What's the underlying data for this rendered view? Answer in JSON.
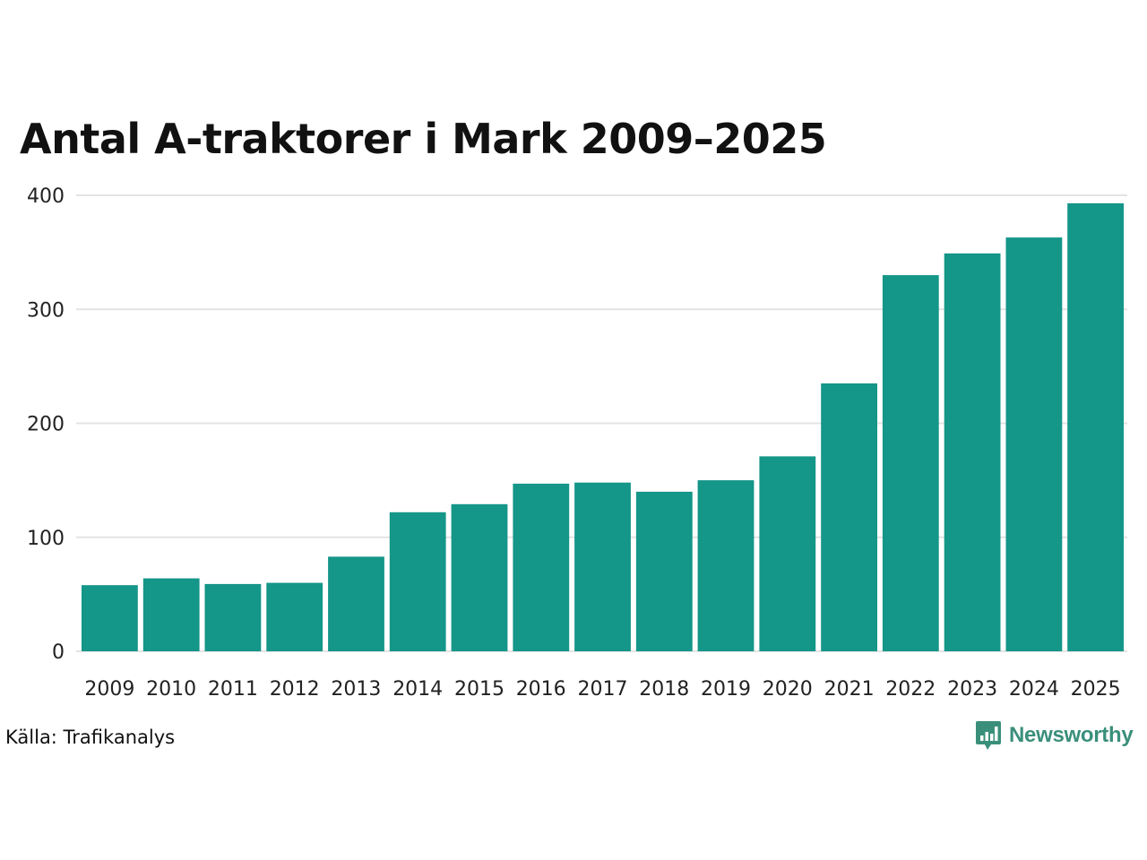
{
  "chart_data": {
    "type": "bar",
    "title": "Antal A-traktorer i Mark 2009–2025",
    "xlabel": "",
    "ylabel": "",
    "categories": [
      "2009",
      "2010",
      "2011",
      "2012",
      "2013",
      "2014",
      "2015",
      "2016",
      "2017",
      "2018",
      "2019",
      "2020",
      "2021",
      "2022",
      "2023",
      "2024",
      "2025"
    ],
    "values": [
      58,
      64,
      59,
      60,
      83,
      122,
      129,
      147,
      148,
      140,
      150,
      171,
      235,
      330,
      349,
      363,
      393
    ],
    "ylim": [
      0,
      400
    ],
    "yticks": [
      0,
      100,
      200,
      300,
      400
    ],
    "grid": true,
    "bar_color": "#149688",
    "grid_color": "#e3e3e3"
  },
  "source": "Källa: Trafikanalys",
  "brand": {
    "name": "Newsworthy",
    "color": "#3a8f7b",
    "icon": "bar-chart-badge-icon"
  }
}
